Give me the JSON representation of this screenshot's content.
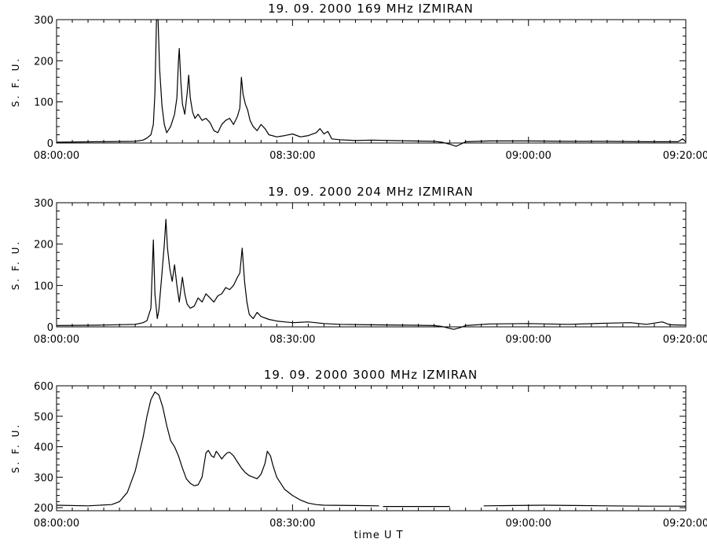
{
  "figure": {
    "xlabel": "time  U T"
  },
  "chart_data": [
    {
      "type": "line",
      "title": "19.  09.  2000    169  MHz    IZMIRAN",
      "ylabel": "S. F. U.",
      "xlabel": "",
      "xlim": [
        0,
        80
      ],
      "ylim": [
        0,
        300
      ],
      "yticks": [
        0,
        100,
        200,
        300
      ],
      "xtick_values": [
        0,
        30,
        60,
        80
      ],
      "xtick_labels": [
        "08:00:00",
        "08:30:00",
        "09:00:00",
        "09:20:00"
      ],
      "series": [
        {
          "values": [
            [
              0,
              2
            ],
            [
              5,
              3
            ],
            [
              10,
              4
            ],
            [
              11,
              7
            ],
            [
              11.5,
              12
            ],
            [
              12,
              20
            ],
            [
              12.3,
              45
            ],
            [
              12.5,
              120
            ],
            [
              12.7,
              300
            ],
            [
              12.9,
              300
            ],
            [
              13.1,
              180
            ],
            [
              13.4,
              90
            ],
            [
              13.7,
              45
            ],
            [
              14,
              25
            ],
            [
              14.5,
              40
            ],
            [
              15,
              70
            ],
            [
              15.3,
              110
            ],
            [
              15.5,
              200
            ],
            [
              15.6,
              230
            ],
            [
              15.8,
              150
            ],
            [
              16,
              95
            ],
            [
              16.3,
              70
            ],
            [
              16.6,
              120
            ],
            [
              16.8,
              165
            ],
            [
              17,
              110
            ],
            [
              17.3,
              75
            ],
            [
              17.6,
              60
            ],
            [
              18,
              70
            ],
            [
              18.5,
              55
            ],
            [
              19,
              60
            ],
            [
              19.5,
              50
            ],
            [
              20,
              30
            ],
            [
              20.5,
              25
            ],
            [
              21,
              45
            ],
            [
              21.5,
              55
            ],
            [
              22,
              60
            ],
            [
              22.5,
              45
            ],
            [
              23,
              65
            ],
            [
              23.3,
              85
            ],
            [
              23.5,
              160
            ],
            [
              23.7,
              120
            ],
            [
              24,
              95
            ],
            [
              24.3,
              80
            ],
            [
              24.6,
              55
            ],
            [
              25,
              40
            ],
            [
              25.5,
              30
            ],
            [
              26,
              45
            ],
            [
              26.5,
              35
            ],
            [
              27,
              20
            ],
            [
              28,
              15
            ],
            [
              29,
              18
            ],
            [
              30,
              22
            ],
            [
              31,
              15
            ],
            [
              32,
              18
            ],
            [
              33,
              25
            ],
            [
              33.5,
              35
            ],
            [
              34,
              22
            ],
            [
              34.5,
              28
            ],
            [
              35,
              10
            ],
            [
              36,
              8
            ],
            [
              38,
              6
            ],
            [
              40,
              7
            ],
            [
              45,
              5
            ],
            [
              48,
              4
            ],
            [
              49,
              2
            ],
            [
              50,
              -3
            ],
            [
              50.8,
              -8
            ],
            [
              51.5,
              -2
            ],
            [
              52,
              3
            ],
            [
              55,
              5
            ],
            [
              60,
              5
            ],
            [
              65,
              4
            ],
            [
              70,
              4
            ],
            [
              75,
              3
            ],
            [
              79,
              3
            ],
            [
              79.6,
              10
            ],
            [
              80,
              3
            ]
          ]
        }
      ]
    },
    {
      "type": "line",
      "title": "19.  09.  2000    204  MHz    IZMIRAN",
      "ylabel": "S. F. U.",
      "xlabel": "",
      "xlim": [
        0,
        80
      ],
      "ylim": [
        0,
        300
      ],
      "yticks": [
        0,
        100,
        200,
        300
      ],
      "xtick_values": [
        0,
        30,
        60,
        80
      ],
      "xtick_labels": [
        "08:00:00",
        "08:30:00",
        "09:00:00",
        "09:20:00"
      ],
      "series": [
        {
          "values": [
            [
              0,
              3
            ],
            [
              5,
              4
            ],
            [
              10,
              6
            ],
            [
              11,
              10
            ],
            [
              11.5,
              15
            ],
            [
              12,
              45
            ],
            [
              12.3,
              210
            ],
            [
              12.5,
              80
            ],
            [
              12.8,
              20
            ],
            [
              13,
              40
            ],
            [
              13.4,
              130
            ],
            [
              13.7,
              200
            ],
            [
              13.9,
              260
            ],
            [
              14.1,
              190
            ],
            [
              14.4,
              140
            ],
            [
              14.7,
              110
            ],
            [
              15,
              150
            ],
            [
              15.3,
              100
            ],
            [
              15.6,
              60
            ],
            [
              16,
              120
            ],
            [
              16.3,
              80
            ],
            [
              16.6,
              55
            ],
            [
              17,
              45
            ],
            [
              17.5,
              50
            ],
            [
              18,
              70
            ],
            [
              18.5,
              60
            ],
            [
              19,
              80
            ],
            [
              19.5,
              70
            ],
            [
              20,
              60
            ],
            [
              20.5,
              75
            ],
            [
              21,
              80
            ],
            [
              21.5,
              95
            ],
            [
              22,
              90
            ],
            [
              22.5,
              100
            ],
            [
              23,
              120
            ],
            [
              23.3,
              130
            ],
            [
              23.6,
              190
            ],
            [
              23.9,
              110
            ],
            [
              24.2,
              60
            ],
            [
              24.5,
              30
            ],
            [
              25,
              20
            ],
            [
              25.5,
              35
            ],
            [
              26,
              25
            ],
            [
              27,
              18
            ],
            [
              28,
              14
            ],
            [
              29,
              12
            ],
            [
              30,
              10
            ],
            [
              32,
              12
            ],
            [
              34,
              8
            ],
            [
              36,
              6
            ],
            [
              40,
              5
            ],
            [
              45,
              4
            ],
            [
              48,
              3
            ],
            [
              49,
              1
            ],
            [
              50.5,
              -6
            ],
            [
              51.3,
              -2
            ],
            [
              52,
              3
            ],
            [
              55,
              7
            ],
            [
              60,
              8
            ],
            [
              65,
              6
            ],
            [
              70,
              9
            ],
            [
              73,
              10
            ],
            [
              75,
              6
            ],
            [
              77,
              12
            ],
            [
              78,
              5
            ],
            [
              80,
              4
            ]
          ]
        }
      ]
    },
    {
      "type": "line",
      "title": "19.  09.  2000    3000  MHz    IZMIRAN",
      "ylabel": "S. F. U.",
      "xlabel": "",
      "xlim": [
        0,
        80
      ],
      "ylim": [
        190,
        600
      ],
      "yticks": [
        200,
        300,
        400,
        500,
        600
      ],
      "xtick_values": [
        0,
        30,
        60,
        80
      ],
      "xtick_labels": [
        "08:00:00",
        "08:30:00",
        "09:00:00",
        "09:20:00"
      ],
      "series": [
        {
          "values": [
            [
              0,
              208
            ],
            [
              4,
              206
            ],
            [
              7,
              210
            ],
            [
              8,
              220
            ],
            [
              9,
              250
            ],
            [
              10,
              320
            ],
            [
              11,
              430
            ],
            [
              11.5,
              500
            ],
            [
              12,
              555
            ],
            [
              12.5,
              580
            ],
            [
              13,
              570
            ],
            [
              13.5,
              530
            ],
            [
              14,
              470
            ],
            [
              14.5,
              420
            ],
            [
              15,
              400
            ],
            [
              15.5,
              370
            ],
            [
              16,
              330
            ],
            [
              16.5,
              295
            ],
            [
              17,
              280
            ],
            [
              17.5,
              272
            ],
            [
              18,
              275
            ],
            [
              18.5,
              300
            ],
            [
              19,
              380
            ],
            [
              19.3,
              388
            ],
            [
              19.7,
              370
            ],
            [
              20,
              365
            ],
            [
              20.3,
              385
            ],
            [
              20.6,
              375
            ],
            [
              21,
              360
            ],
            [
              21.3,
              370
            ],
            [
              21.7,
              380
            ],
            [
              22,
              382
            ],
            [
              22.5,
              370
            ],
            [
              23,
              350
            ],
            [
              23.5,
              330
            ],
            [
              24,
              315
            ],
            [
              24.5,
              305
            ],
            [
              25,
              300
            ],
            [
              25.5,
              295
            ],
            [
              26,
              310
            ],
            [
              26.5,
              345
            ],
            [
              26.8,
              385
            ],
            [
              27.2,
              370
            ],
            [
              27.5,
              340
            ],
            [
              28,
              300
            ],
            [
              29,
              260
            ],
            [
              30,
              240
            ],
            [
              31,
              225
            ],
            [
              32,
              215
            ],
            [
              33,
              210
            ],
            [
              34,
              208
            ],
            [
              38,
              207
            ],
            [
              41,
              206
            ],
            [
              41.3,
              null
            ],
            [
              41.5,
              204
            ],
            [
              47,
              204
            ],
            [
              50,
              204
            ],
            [
              50.3,
              null
            ],
            [
              54,
              null
            ],
            [
              54.3,
              206
            ],
            [
              58,
              207
            ],
            [
              62,
              208
            ],
            [
              66,
              207
            ],
            [
              70,
              206
            ],
            [
              75,
              205
            ],
            [
              80,
              205
            ]
          ]
        }
      ]
    }
  ]
}
